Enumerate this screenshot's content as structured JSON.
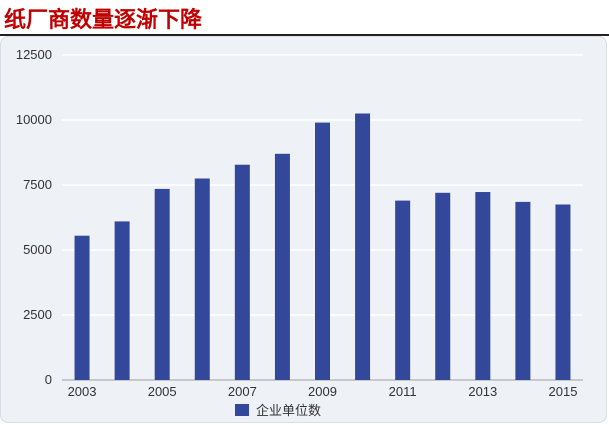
{
  "page": {
    "title": "纸厂商数量逐渐下降"
  },
  "colors": {
    "bar": "#33489a",
    "title": "#c00000",
    "grid": "#ffffff",
    "background": "#eef1f6"
  },
  "chart_data": {
    "type": "bar",
    "title": "纸厂商数量逐渐下降",
    "xlabel": "",
    "ylabel": "",
    "categories": [
      "2003",
      "2004",
      "2005",
      "2006",
      "2007",
      "2008",
      "2009",
      "2010",
      "2011",
      "2012",
      "2013",
      "2014",
      "2015"
    ],
    "x_tick_labels": [
      "2003",
      "2005",
      "2007",
      "2009",
      "2011",
      "2013",
      "2015"
    ],
    "series": [
      {
        "name": "企业单位数",
        "values": [
          5550,
          6100,
          7350,
          7750,
          8280,
          8700,
          9900,
          10250,
          6900,
          7200,
          7230,
          6850,
          6750
        ]
      }
    ],
    "ylim": [
      0,
      12500
    ],
    "y_ticks": [
      0,
      2500,
      5000,
      7500,
      10000,
      12500
    ],
    "grid": true,
    "legend_position": "bottom-left"
  }
}
